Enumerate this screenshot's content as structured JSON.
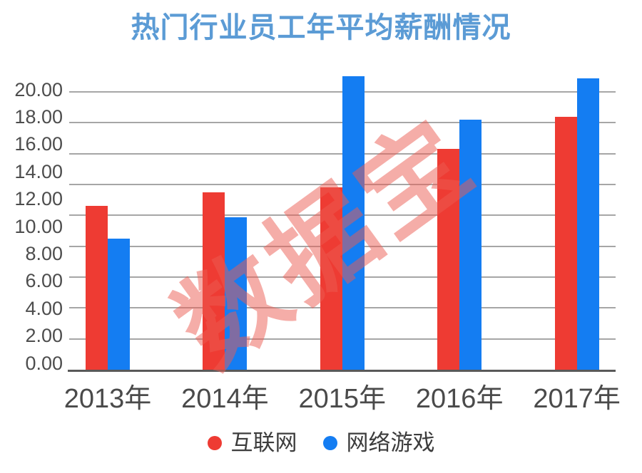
{
  "title": "热门行业员工年平均薪酬情况",
  "watermark": {
    "text": "数据宝"
  },
  "colors": {
    "title": "#5b9bd5",
    "grid": "#a6a6a6",
    "axis_line": "#595959",
    "ytick_text": "#4d4d4d",
    "xtick_text": "#4a4a4a",
    "legend_text": "#3c3c3c",
    "watermark": "rgba(236,92,82,0.5)",
    "series_internet": "#ee3b33",
    "series_games": "#147df2"
  },
  "legend": {
    "position": "bottom",
    "items": [
      {
        "label": "互联网",
        "color": "#ee3b33"
      },
      {
        "label": "网络游戏",
        "color": "#147df2"
      }
    ]
  },
  "chart_data": {
    "type": "bar",
    "title": "热门行业员工年平均薪酬情况",
    "categories": [
      "2013年",
      "2014年",
      "2015年",
      "2016年",
      "2017年"
    ],
    "series": [
      {
        "name": "互联网",
        "color": "#ee3b33",
        "values": [
          10.6,
          11.5,
          11.8,
          14.3,
          16.4
        ]
      },
      {
        "name": "网络游戏",
        "color": "#147df2",
        "values": [
          8.5,
          9.9,
          19.0,
          16.2,
          18.9
        ]
      }
    ],
    "xlabel": "",
    "ylabel": "",
    "ylim": [
      0,
      20
    ],
    "ytick_step": 2,
    "ytick_labels": [
      "0.00",
      "2.00",
      "4.00",
      "6.00",
      "8.00",
      "10.00",
      "12.00",
      "14.00",
      "16.00",
      "18.00",
      "20.00"
    ],
    "grid": true,
    "gridline_max": 18,
    "legend_position": "bottom"
  }
}
